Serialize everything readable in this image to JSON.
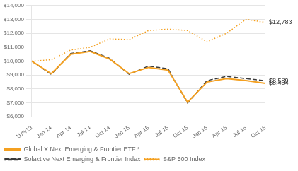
{
  "chart_data": {
    "type": "line",
    "categories": [
      "11/6/13",
      "Jan 14",
      "Apr 14",
      "Jul 14",
      "Oct 14",
      "Jan 15",
      "Apr 15",
      "Jul 15",
      "Oct 15",
      "Jan 16",
      "Apr 16",
      "Jul 16",
      "Oct 16"
    ],
    "series": [
      {
        "name": "Global X Next Emerging & Frontier ETF *",
        "color": "#F4A020",
        "line_style": "solid",
        "values": [
          10000,
          9100,
          10500,
          10700,
          10150,
          9100,
          9550,
          9350,
          7050,
          8500,
          8750,
          8600,
          8404
        ]
      },
      {
        "name": "Solactive Next Emerging & Frontier Index",
        "color": "#3a3a3a",
        "line_style": "dashed",
        "values": [
          10000,
          9050,
          10550,
          10750,
          10200,
          9050,
          9650,
          9450,
          7000,
          8600,
          8900,
          8750,
          8589
        ]
      },
      {
        "name": "S&P 500 Index",
        "color": "#F4A020",
        "line_style": "dotted",
        "values": [
          10000,
          10100,
          10800,
          11000,
          11600,
          11550,
          12200,
          12300,
          12200,
          11400,
          12000,
          13000,
          12783
        ]
      }
    ],
    "ylim": [
      6000,
      14000
    ],
    "yticks": [
      {
        "value": 6000,
        "label": "$6,000"
      },
      {
        "value": 7000,
        "label": "$7,000"
      },
      {
        "value": 8000,
        "label": "$8,000"
      },
      {
        "value": 9000,
        "label": "$9,000"
      },
      {
        "value": 10000,
        "label": "$10,000"
      },
      {
        "value": 11000,
        "label": "$11,000"
      },
      {
        "value": 12000,
        "label": "$12,000"
      },
      {
        "value": 13000,
        "label": "$13,000"
      },
      {
        "value": 14000,
        "label": "$14,000"
      }
    ],
    "annotations": [
      {
        "text": "$12,783",
        "x": "Oct 16",
        "y": 12783
      },
      {
        "text": "$8,589",
        "x": "Oct 16",
        "y": 8589
      },
      {
        "text": "$8,404",
        "x": "Oct 16",
        "y": 8404
      }
    ],
    "grid": true,
    "legend": "bottom"
  }
}
